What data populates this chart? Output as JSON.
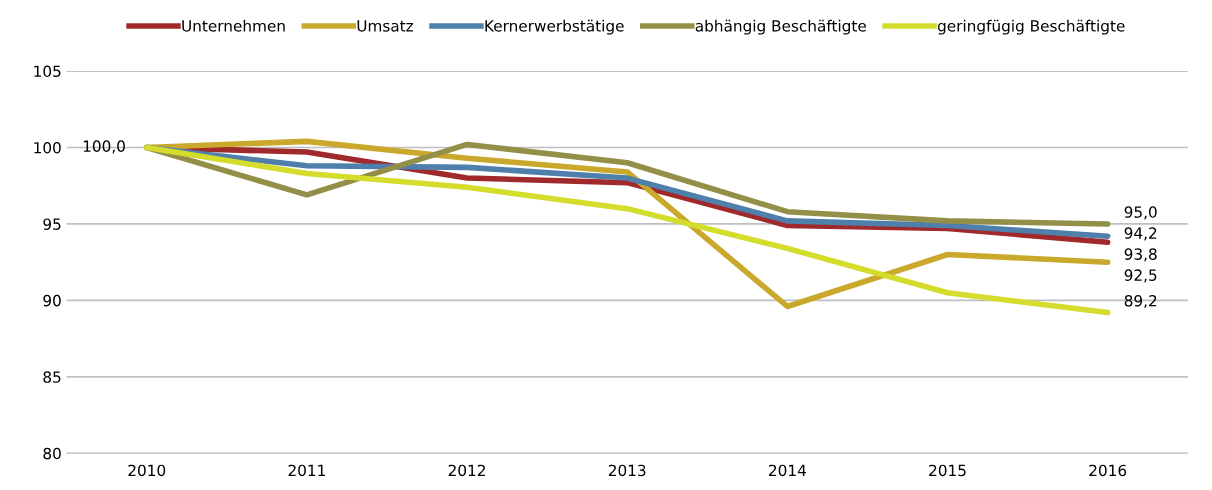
{
  "chart_data": {
    "type": "line",
    "categories": [
      "2010",
      "2011",
      "2012",
      "2013",
      "2014",
      "2015",
      "2016"
    ],
    "series": [
      {
        "name": "Unternehmen",
        "color": "#a0292b",
        "values": [
          100.0,
          99.7,
          98.0,
          97.7,
          94.9,
          94.7,
          93.8
        ],
        "value_labels": [
          "100,0",
          null,
          null,
          null,
          null,
          null,
          "93,8"
        ]
      },
      {
        "name": "Umsatz",
        "color": "#c9a82c",
        "values": [
          100.0,
          100.4,
          99.3,
          98.4,
          89.6,
          93.0,
          92.5
        ],
        "value_labels": [
          null,
          null,
          null,
          null,
          null,
          null,
          "92,5"
        ]
      },
      {
        "name": "Kernerwerbstätige",
        "color": "#4f7fab",
        "values": [
          100.0,
          98.8,
          98.7,
          98.0,
          95.2,
          94.9,
          94.2
        ],
        "value_labels": [
          null,
          null,
          null,
          null,
          null,
          null,
          "94,2"
        ]
      },
      {
        "name": "abhängig Beschäftigte",
        "color": "#938f48",
        "values": [
          100.0,
          96.9,
          100.2,
          99.0,
          95.8,
          95.2,
          95.0
        ],
        "value_labels": [
          null,
          null,
          null,
          null,
          null,
          null,
          "95,0"
        ]
      },
      {
        "name": "geringfügig Beschäftigte",
        "color": "#d4dc2c",
        "values": [
          100.0,
          98.3,
          97.4,
          96.0,
          93.4,
          90.5,
          89.2
        ],
        "value_labels": [
          null,
          null,
          null,
          null,
          null,
          null,
          "89,2"
        ]
      }
    ],
    "ylim": [
      80,
      105
    ],
    "yticks": [
      80,
      85,
      90,
      95,
      100,
      105
    ],
    "grid": "y",
    "legend": "top",
    "marker": "none",
    "line_style": "solid"
  }
}
